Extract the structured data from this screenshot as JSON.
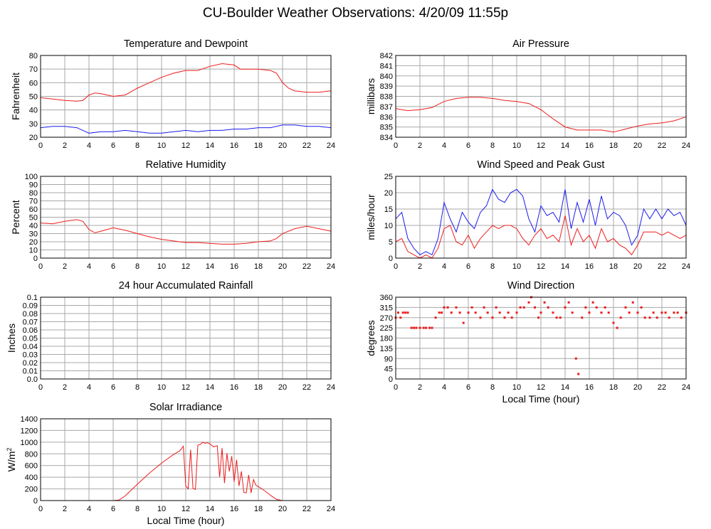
{
  "page_title": "CU-Boulder Weather Observations: 4/20/09 11:55p",
  "colors": {
    "red": "#ee1c1c",
    "blue": "#1c1cee",
    "grid": "#a8a8a8"
  },
  "chart_data": [
    {
      "id": "temperature",
      "type": "line",
      "title": "Temperature and Dewpoint",
      "xlabel": "",
      "ylabel": "Fahrenheit",
      "xlim": [
        0,
        24
      ],
      "ylim": [
        20,
        80
      ],
      "xticks": [
        0,
        2,
        4,
        6,
        8,
        10,
        12,
        14,
        16,
        18,
        20,
        22,
        24
      ],
      "xtick_labels": [
        "0",
        "2",
        "4",
        "6",
        "8",
        "10",
        "12",
        "14",
        "16",
        "18",
        "20",
        "22",
        "24"
      ],
      "yticks": [
        20,
        30,
        40,
        50,
        60,
        70,
        80
      ],
      "ytick_labels": [
        "20",
        "30",
        "40",
        "50",
        "60",
        "70",
        "80"
      ],
      "series": [
        {
          "name": "Temperature",
          "color": "#ee1c1c",
          "x": [
            0,
            1,
            2,
            3,
            3.5,
            4,
            4.5,
            5,
            6,
            7,
            8,
            9,
            10,
            11,
            12,
            13,
            14,
            15,
            16,
            16.5,
            17,
            18,
            19,
            19.5,
            20,
            20.5,
            21,
            22,
            23,
            24
          ],
          "y": [
            49,
            48,
            47,
            46.5,
            47,
            51,
            52.5,
            52,
            50,
            51,
            56,
            60,
            64,
            67,
            69,
            69,
            72,
            74,
            73,
            70,
            70,
            70,
            69,
            67,
            60,
            56,
            54,
            53,
            53,
            54
          ]
        },
        {
          "name": "Dewpoint",
          "color": "#1c1cee",
          "x": [
            0,
            1,
            2,
            3,
            4,
            5,
            6,
            7,
            8,
            9,
            10,
            11,
            12,
            13,
            14,
            15,
            16,
            17,
            18,
            19,
            20,
            21,
            22,
            23,
            24
          ],
          "y": [
            27,
            28,
            28,
            27,
            23,
            24,
            24,
            25,
            24,
            23,
            23,
            24,
            25,
            24,
            25,
            25,
            26,
            26,
            27,
            27,
            29,
            29,
            28,
            28,
            27
          ]
        }
      ]
    },
    {
      "id": "pressure",
      "type": "line",
      "title": "Air Pressure",
      "xlabel": "",
      "ylabel": "millibars",
      "xlim": [
        0,
        24
      ],
      "ylim": [
        834,
        842
      ],
      "xticks": [
        0,
        2,
        4,
        6,
        8,
        10,
        12,
        14,
        16,
        18,
        20,
        22,
        24
      ],
      "xtick_labels": [
        "0",
        "2",
        "4",
        "6",
        "8",
        "10",
        "12",
        "14",
        "16",
        "18",
        "20",
        "22",
        "24"
      ],
      "yticks": [
        834,
        835,
        836,
        837,
        838,
        839,
        840,
        841,
        842
      ],
      "ytick_labels": [
        "834",
        "835",
        "836",
        "837",
        "838",
        "839",
        "840",
        "841",
        "842"
      ],
      "series": [
        {
          "name": "Pressure",
          "color": "#ee1c1c",
          "x": [
            0,
            1,
            2,
            3,
            4,
            5,
            6,
            7,
            8,
            9,
            10,
            11,
            12,
            13,
            14,
            15,
            16,
            17,
            18,
            19,
            20,
            21,
            22,
            23,
            24
          ],
          "y": [
            836.8,
            836.6,
            836.7,
            836.9,
            837.5,
            837.8,
            837.9,
            837.9,
            837.8,
            837.6,
            837.5,
            837.3,
            836.7,
            835.8,
            835.0,
            834.7,
            834.7,
            834.7,
            834.5,
            834.8,
            835.1,
            835.3,
            835.4,
            835.6,
            836.0
          ]
        }
      ]
    },
    {
      "id": "humidity",
      "type": "line",
      "title": "Relative Humidity",
      "xlabel": "",
      "ylabel": "Percent",
      "xlim": [
        0,
        24
      ],
      "ylim": [
        0,
        100
      ],
      "xticks": [
        0,
        2,
        4,
        6,
        8,
        10,
        12,
        14,
        16,
        18,
        20,
        22,
        24
      ],
      "xtick_labels": [
        "0",
        "2",
        "4",
        "6",
        "8",
        "10",
        "12",
        "14",
        "16",
        "18",
        "20",
        "22",
        "24"
      ],
      "yticks": [
        0,
        10,
        20,
        30,
        40,
        50,
        60,
        70,
        80,
        90,
        100
      ],
      "ytick_labels": [
        "0",
        "10",
        "20",
        "30",
        "40",
        "50",
        "60",
        "70",
        "80",
        "90",
        "100"
      ],
      "series": [
        {
          "name": "Relative Humidity",
          "color": "#ee1c1c",
          "x": [
            0,
            1,
            2,
            3,
            3.5,
            4,
            4.5,
            5,
            6,
            7,
            8,
            9,
            10,
            11,
            12,
            13,
            14,
            15,
            16,
            17,
            18,
            19,
            19.5,
            20,
            21,
            22,
            23,
            24
          ],
          "y": [
            43,
            42,
            45,
            47,
            45,
            35,
            31,
            33,
            37,
            34,
            30,
            26,
            23,
            21,
            19,
            19,
            18,
            17,
            17,
            18,
            20,
            21,
            24,
            30,
            36,
            39,
            36,
            33
          ]
        }
      ]
    },
    {
      "id": "wind_speed",
      "type": "line",
      "title": "Wind Speed and Peak Gust",
      "xlabel": "",
      "ylabel": "miles/hour",
      "xlim": [
        0,
        24
      ],
      "ylim": [
        0,
        25
      ],
      "xticks": [
        0,
        2,
        4,
        6,
        8,
        10,
        12,
        14,
        16,
        18,
        20,
        22,
        24
      ],
      "xtick_labels": [
        "0",
        "2",
        "4",
        "6",
        "8",
        "10",
        "12",
        "14",
        "16",
        "18",
        "20",
        "22",
        "24"
      ],
      "yticks": [
        0,
        5,
        10,
        15,
        20,
        25
      ],
      "ytick_labels": [
        "0",
        "5",
        "10",
        "15",
        "20",
        "25"
      ],
      "series": [
        {
          "name": "Peak Gust",
          "color": "#1c1cee",
          "x": [
            0,
            0.5,
            1,
            1.5,
            2,
            2.5,
            3,
            3.5,
            4,
            4.5,
            5,
            5.5,
            6,
            6.5,
            7,
            7.5,
            8,
            8.5,
            9,
            9.5,
            10,
            10.5,
            11,
            11.5,
            12,
            12.5,
            13,
            13.5,
            14,
            14.5,
            15,
            15.5,
            16,
            16.5,
            17,
            17.5,
            18,
            18.5,
            19,
            19.5,
            20,
            20.5,
            21,
            21.5,
            22,
            22.5,
            23,
            23.5,
            24
          ],
          "y": [
            12,
            14,
            6,
            3,
            1,
            2,
            1,
            6,
            17,
            12,
            8,
            14,
            11,
            9,
            14,
            16,
            21,
            18,
            17,
            20,
            21,
            19,
            12,
            8,
            16,
            13,
            14,
            11,
            21,
            9,
            17,
            11,
            18,
            10,
            19,
            12,
            14,
            13,
            10,
            4,
            7,
            15,
            12,
            15,
            12,
            15,
            13,
            14,
            10
          ]
        },
        {
          "name": "Wind Speed",
          "color": "#ee1c1c",
          "x": [
            0,
            0.5,
            1,
            1.5,
            2,
            2.5,
            3,
            3.5,
            4,
            4.5,
            5,
            5.5,
            6,
            6.5,
            7,
            7.5,
            8,
            8.5,
            9,
            9.5,
            10,
            10.5,
            11,
            11.5,
            12,
            12.5,
            13,
            13.5,
            14,
            14.5,
            15,
            15.5,
            16,
            16.5,
            17,
            17.5,
            18,
            18.5,
            19,
            19.5,
            20,
            20.5,
            21,
            21.5,
            22,
            22.5,
            23,
            23.5,
            24
          ],
          "y": [
            5,
            6,
            2,
            1,
            0,
            1,
            0,
            3,
            9,
            10,
            5,
            4,
            7,
            3,
            6,
            8,
            10,
            9,
            10,
            10,
            9,
            6,
            4,
            7,
            9,
            6,
            7,
            5,
            13,
            4,
            9,
            5,
            7,
            3,
            9,
            5,
            6,
            4,
            3,
            1,
            4,
            8,
            8,
            8,
            7,
            8,
            7,
            6,
            7
          ]
        }
      ]
    },
    {
      "id": "rainfall",
      "type": "line",
      "title": "24 hour Accumulated Rainfall",
      "xlabel": "",
      "ylabel": "Inches",
      "xlim": [
        0,
        24
      ],
      "ylim": [
        0,
        0.1
      ],
      "xticks": [
        0,
        2,
        4,
        6,
        8,
        10,
        12,
        14,
        16,
        18,
        20,
        22,
        24
      ],
      "xtick_labels": [
        "0",
        "2",
        "4",
        "6",
        "8",
        "10",
        "12",
        "14",
        "16",
        "18",
        "20",
        "22",
        "24"
      ],
      "yticks": [
        0,
        0.01,
        0.02,
        0.03,
        0.04,
        0.05,
        0.06,
        0.07,
        0.08,
        0.09,
        0.1
      ],
      "ytick_labels": [
        "0.0",
        "0.01",
        "0.02",
        "0.03",
        "0.04",
        "0.05",
        "0.06",
        "0.07",
        "0.08",
        "0.09",
        "0.1"
      ],
      "series": [
        {
          "name": "Rainfall",
          "color": "#ee1c1c",
          "x": [
            0,
            24
          ],
          "y": [
            0,
            0
          ]
        }
      ]
    },
    {
      "id": "wind_direction",
      "type": "scatter",
      "title": "Wind Direction",
      "xlabel": "Local Time (hour)",
      "ylabel": "degrees",
      "xlim": [
        0,
        24
      ],
      "ylim": [
        0,
        360
      ],
      "xticks": [
        0,
        2,
        4,
        6,
        8,
        10,
        12,
        14,
        16,
        18,
        20,
        22,
        24
      ],
      "xtick_labels": [
        "0",
        "2",
        "4",
        "6",
        "8",
        "10",
        "12",
        "14",
        "16",
        "18",
        "20",
        "22",
        "24"
      ],
      "yticks": [
        0,
        45,
        90,
        135,
        180,
        225,
        270,
        315,
        360
      ],
      "ytick_labels": [
        "0",
        "45",
        "90",
        "135",
        "180",
        "225",
        "270",
        "315",
        "360"
      ],
      "series": [
        {
          "name": "Wind Direction",
          "color": "#ee1c1c",
          "x": [
            0,
            0.2,
            0.4,
            0.6,
            0.8,
            1.0,
            1.3,
            1.5,
            1.7,
            2.0,
            2.3,
            2.5,
            2.8,
            3.0,
            3.3,
            3.6,
            3.8,
            4.0,
            4.3,
            4.6,
            5.0,
            5.3,
            5.6,
            6.0,
            6.3,
            6.6,
            7.0,
            7.3,
            7.6,
            8.0,
            8.3,
            8.6,
            9.0,
            9.3,
            9.6,
            10.0,
            10.3,
            10.6,
            11.0,
            11.2,
            11.5,
            11.8,
            12.0,
            12.3,
            12.6,
            13.0,
            13.3,
            13.6,
            14.0,
            14.3,
            14.6,
            14.9,
            15.1,
            15.4,
            15.7,
            16.0,
            16.3,
            16.6,
            17.0,
            17.3,
            17.6,
            18.0,
            18.3,
            18.6,
            19.0,
            19.3,
            19.6,
            20.0,
            20.3,
            20.6,
            21.0,
            21.3,
            21.6,
            22.0,
            22.3,
            22.6,
            23.0,
            23.3,
            23.6,
            24.0
          ],
          "y": [
            270,
            292,
            270,
            292,
            292,
            292,
            225,
            225,
            225,
            225,
            225,
            225,
            225,
            225,
            270,
            292,
            292,
            315,
            315,
            292,
            315,
            292,
            247,
            292,
            315,
            292,
            270,
            315,
            292,
            270,
            315,
            292,
            270,
            292,
            270,
            292,
            315,
            315,
            337,
            360,
            315,
            270,
            292,
            337,
            315,
            292,
            270,
            270,
            315,
            337,
            292,
            90,
            22,
            270,
            315,
            292,
            337,
            315,
            292,
            315,
            292,
            247,
            225,
            270,
            315,
            292,
            337,
            292,
            315,
            270,
            270,
            292,
            270,
            292,
            292,
            270,
            292,
            292,
            270,
            292
          ]
        }
      ]
    },
    {
      "id": "solar",
      "type": "line",
      "title": "Solar Irradiance",
      "xlabel": "Local Time (hour)",
      "ylabel": "W/m2",
      "xlim": [
        0,
        24
      ],
      "ylim": [
        0,
        1400
      ],
      "xticks": [
        0,
        2,
        4,
        6,
        8,
        10,
        12,
        14,
        16,
        18,
        20,
        22,
        24
      ],
      "xtick_labels": [
        "0",
        "2",
        "4",
        "6",
        "8",
        "10",
        "12",
        "14",
        "16",
        "18",
        "20",
        "22",
        "24"
      ],
      "yticks": [
        0,
        200,
        400,
        600,
        800,
        1000,
        1200,
        1400
      ],
      "ytick_labels": [
        "0",
        "200",
        "400",
        "600",
        "800",
        "1000",
        "1200",
        "1400"
      ],
      "series": [
        {
          "name": "Solar Irradiance",
          "color": "#ee1c1c",
          "x": [
            0,
            6,
            6.5,
            7,
            8,
            9,
            10,
            11,
            11.5,
            11.8,
            12.0,
            12.2,
            12.4,
            12.6,
            12.8,
            13.0,
            13.2,
            13.4,
            13.6,
            13.8,
            14.0,
            14.3,
            14.6,
            14.8,
            15.0,
            15.2,
            15.4,
            15.6,
            15.8,
            16.0,
            16.2,
            16.4,
            16.6,
            16.8,
            17.0,
            17.2,
            17.4,
            17.6,
            17.8,
            18.0,
            18.5,
            19.0,
            19.5,
            20.0,
            24
          ],
          "y": [
            0,
            0,
            10,
            80,
            280,
            470,
            640,
            790,
            850,
            930,
            250,
            200,
            870,
            210,
            190,
            950,
            960,
            1000,
            980,
            990,
            970,
            920,
            940,
            400,
            900,
            300,
            810,
            500,
            760,
            320,
            700,
            250,
            500,
            140,
            130,
            440,
            130,
            360,
            260,
            240,
            170,
            90,
            20,
            0,
            0
          ]
        }
      ]
    }
  ]
}
